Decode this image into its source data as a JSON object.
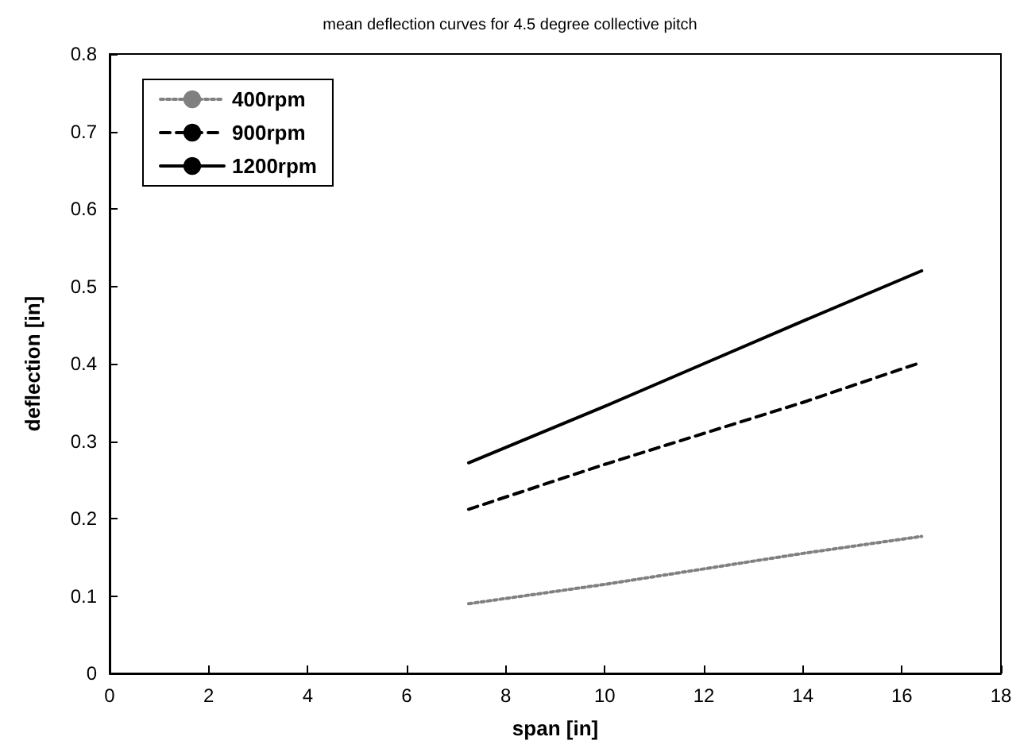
{
  "chart_data": {
    "type": "line",
    "title": "mean deflection curves for 4.5 degree collective pitch",
    "xlabel": "span [in]",
    "ylabel": "deflection [in]",
    "xlim": [
      0,
      18
    ],
    "xticks": [
      0,
      2,
      4,
      6,
      8,
      10,
      12,
      14,
      16,
      18
    ],
    "ylim": [
      0,
      0.8
    ],
    "yticks": [
      0,
      0.1,
      0.2,
      0.3,
      0.4,
      0.5,
      0.6,
      0.7,
      0.8
    ],
    "grid": false,
    "legend": "top left",
    "marker": "none",
    "series": [
      {
        "name": "400rpm",
        "color": "#808080",
        "line_style": "dotted",
        "x": [
          7.25,
          10,
          12,
          14,
          16.4
        ],
        "values": [
          0.09,
          0.115,
          0.135,
          0.155,
          0.177
        ]
      },
      {
        "name": "900rpm",
        "color": "#000000",
        "line_style": "dashed",
        "x": [
          7.25,
          10,
          12,
          14,
          16.4
        ],
        "values": [
          0.212,
          0.27,
          0.31,
          0.35,
          0.402
        ]
      },
      {
        "name": "1200rpm",
        "color": "#000000",
        "line_style": "solid",
        "x": [
          7.25,
          10,
          12,
          14,
          16.4
        ],
        "values": [
          0.272,
          0.345,
          0.4,
          0.455,
          0.52
        ]
      }
    ]
  }
}
